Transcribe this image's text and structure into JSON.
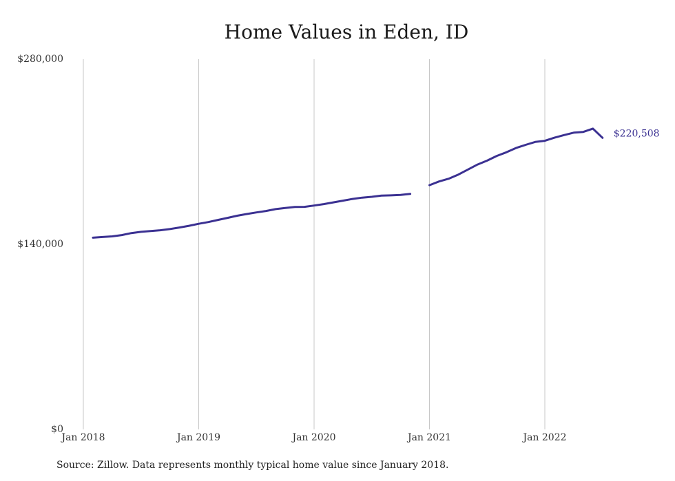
{
  "chart_data": {
    "type": "line",
    "title": "Home Values in Eden, ID",
    "source": "Source: Zillow. Data represents monthly typical home value since January 2018.",
    "xlabel": "",
    "ylabel": "",
    "ylim": [
      0,
      280000
    ],
    "xlim": [
      "2018-01",
      "2022-12"
    ],
    "y_ticks": [
      {
        "value": 0,
        "label": "$0"
      },
      {
        "value": 140000,
        "label": "$140,000"
      },
      {
        "value": 280000,
        "label": "$280,000"
      }
    ],
    "x_ticks": [
      {
        "date": "2018-01",
        "label": "Jan 2018"
      },
      {
        "date": "2019-01",
        "label": "Jan 2019"
      },
      {
        "date": "2020-01",
        "label": "Jan 2020"
      },
      {
        "date": "2021-01",
        "label": "Jan 2021"
      },
      {
        "date": "2022-01",
        "label": "Jan 2022"
      }
    ],
    "grid": {
      "vertical": true,
      "horizontal": false
    },
    "line_color": "#3b3192",
    "end_label": "$220,508",
    "series": [
      {
        "segments": [
          {
            "x": [
              "2018-02",
              "2018-03",
              "2018-04",
              "2018-05",
              "2018-06",
              "2018-07",
              "2018-08",
              "2018-09",
              "2018-10",
              "2018-11",
              "2018-12",
              "2019-01",
              "2019-02",
              "2019-03",
              "2019-04",
              "2019-05",
              "2019-06",
              "2019-07",
              "2019-08",
              "2019-09",
              "2019-10",
              "2019-11",
              "2019-12",
              "2020-01",
              "2020-02",
              "2020-03",
              "2020-04",
              "2020-05",
              "2020-06",
              "2020-07",
              "2020-08",
              "2020-09",
              "2020-10",
              "2020-11"
            ],
            "y": [
              145000,
              145500,
              146000,
              147000,
              148500,
              149400,
              150000,
              150600,
              151500,
              152700,
              154000,
              155500,
              156800,
              158400,
              160000,
              161600,
              162900,
              164100,
              165200,
              166600,
              167500,
              168200,
              168300,
              169300,
              170400,
              171700,
              173000,
              174300,
              175300,
              175900,
              176800,
              177000,
              177300,
              178100
            ]
          },
          {
            "x": [
              "2021-01",
              "2021-02",
              "2021-03",
              "2021-04",
              "2021-05",
              "2021-06",
              "2021-07",
              "2021-08",
              "2021-09",
              "2021-10",
              "2021-11",
              "2021-12",
              "2022-01",
              "2022-02",
              "2022-03",
              "2022-04",
              "2022-05",
              "2022-06",
              "2022-07"
            ],
            "y": [
              184700,
              187500,
              189600,
              192700,
              196500,
              200300,
              203300,
              206800,
              209600,
              212800,
              215200,
              217400,
              218300,
              220600,
              222600,
              224400,
              225000,
              227500,
              220508
            ]
          }
        ]
      }
    ]
  }
}
